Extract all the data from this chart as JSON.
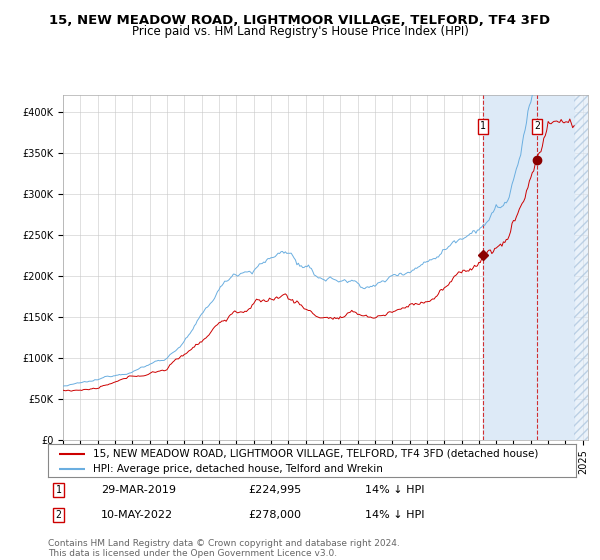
{
  "title1": "15, NEW MEADOW ROAD, LIGHTMOOR VILLAGE, TELFORD, TF4 3FD",
  "title2": "Price paid vs. HM Land Registry's House Price Index (HPI)",
  "ylim": [
    0,
    420000
  ],
  "yticks": [
    0,
    50000,
    100000,
    150000,
    200000,
    250000,
    300000,
    350000,
    400000
  ],
  "ytick_labels": [
    "£0",
    "£50K",
    "£100K",
    "£150K",
    "£200K",
    "£250K",
    "£300K",
    "£350K",
    "£400K"
  ],
  "xlim_start": 1995.0,
  "xlim_end": 2025.3,
  "sale1_date": 2019.24,
  "sale1_price": 224995,
  "sale1_label": "29-MAR-2019",
  "sale1_pct": "14% ↓ HPI",
  "sale2_date": 2022.36,
  "sale2_price": 278000,
  "sale2_label": "10-MAY-2022",
  "sale2_pct": "14% ↓ HPI",
  "hpi_color": "#6aaee0",
  "price_color": "#cc0000",
  "sale_marker_color": "#8b0000",
  "background_color": "#ffffff",
  "grid_color": "#c8c8c8",
  "shade_color": "#ddeaf7",
  "hatch_end": 2025.3,
  "data_end": 2024.5,
  "legend_line1": "15, NEW MEADOW ROAD, LIGHTMOOR VILLAGE, TELFORD, TF4 3FD (detached house)",
  "legend_line2": "HPI: Average price, detached house, Telford and Wrekin",
  "footer": "Contains HM Land Registry data © Crown copyright and database right 2024.\nThis data is licensed under the Open Government Licence v3.0.",
  "title1_fontsize": 9.5,
  "title2_fontsize": 8.5,
  "tick_fontsize": 7,
  "legend_fontsize": 7.5,
  "footer_fontsize": 6.5
}
